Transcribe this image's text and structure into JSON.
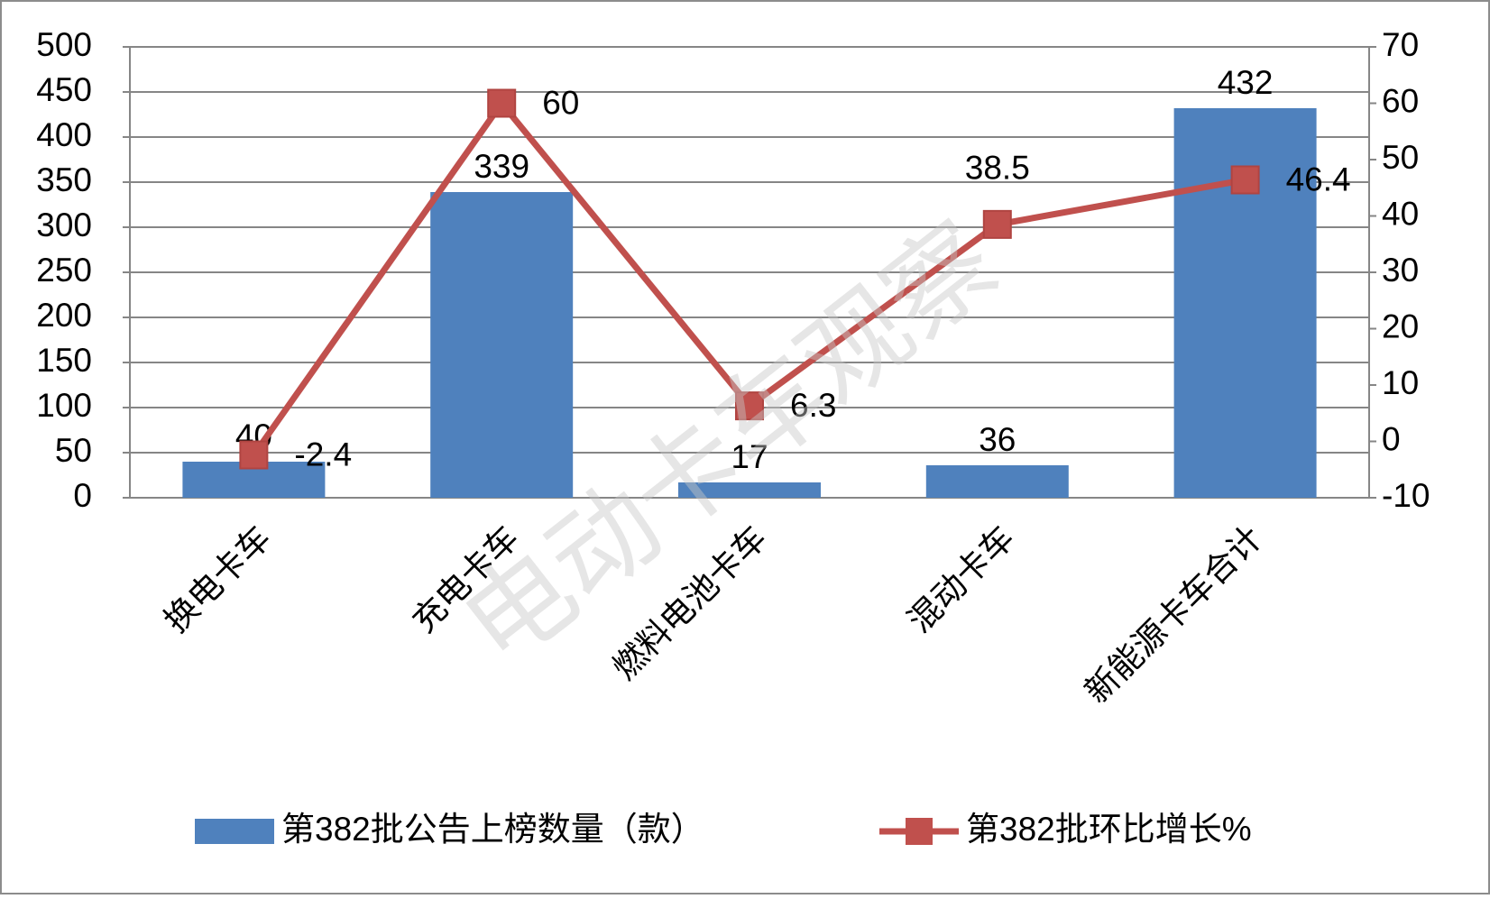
{
  "chart_data": {
    "type": "combo",
    "watermark": "电动卡车观察",
    "categories": [
      "换电卡车",
      "充电卡车",
      "燃料电池卡车",
      "混动卡车",
      "新能源卡车合计"
    ],
    "series": [
      {
        "name": "第382批公告上榜数量（款）",
        "type": "bar",
        "color": "#4f81bd",
        "values": [
          40,
          339,
          17,
          36,
          432
        ]
      },
      {
        "name": "第382批环比增长%",
        "type": "line",
        "axis": "y2",
        "color": "#c0504d",
        "values": [
          -2.4,
          60,
          6.3,
          38.5,
          46.4
        ]
      }
    ],
    "ylim": [
      0,
      500
    ],
    "yticks": [
      0,
      50,
      100,
      150,
      200,
      250,
      300,
      350,
      400,
      450,
      500
    ],
    "y2lim": [
      -10,
      70
    ],
    "y2ticks": [
      -10,
      0,
      10,
      20,
      30,
      40,
      50,
      60,
      70
    ],
    "grid": true,
    "legend": "bottom"
  }
}
